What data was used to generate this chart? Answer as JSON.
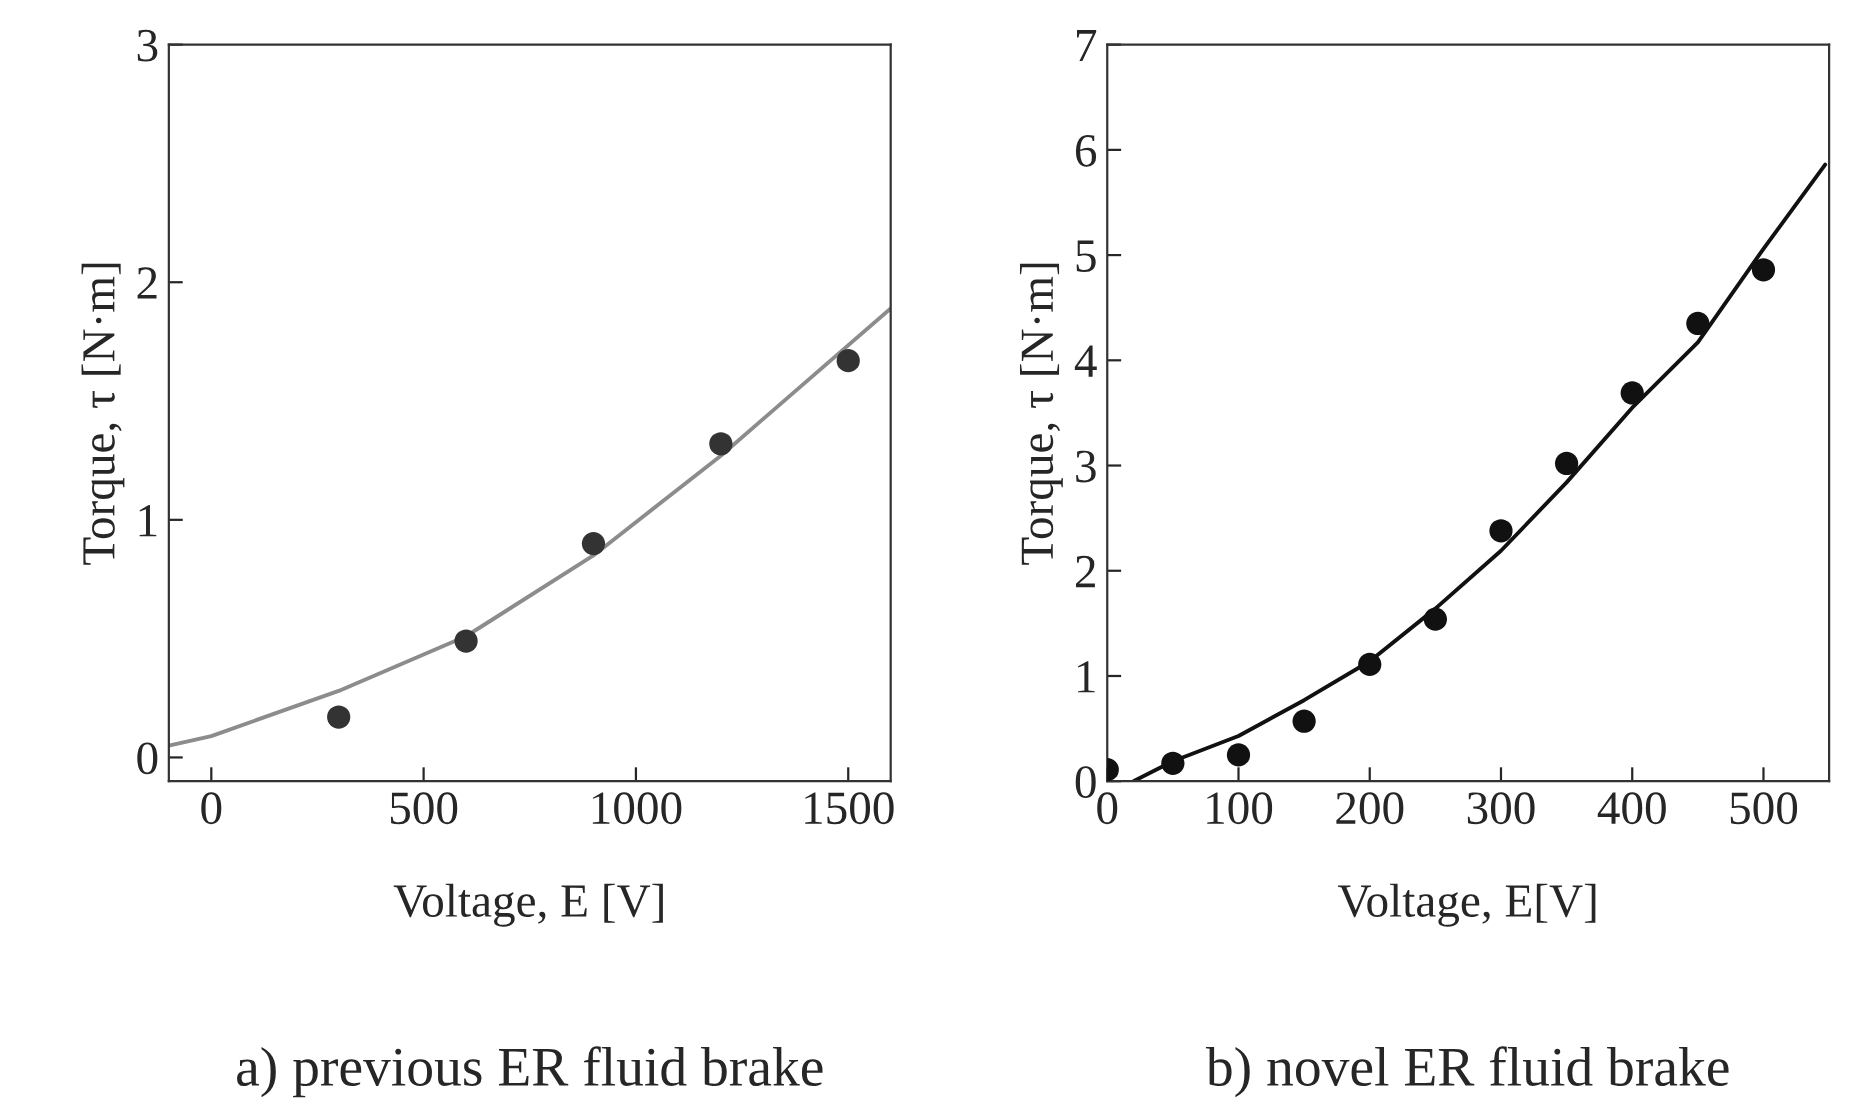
{
  "chart_data": [
    {
      "type": "scatter",
      "xlabel": "Voltage, E [V]",
      "ylabel": "Torque, τ [N·m]",
      "annotations": [
        "a) previous ER fluid brake"
      ],
      "xlim": [
        -100,
        1600
      ],
      "ylim": [
        -0.1,
        3
      ],
      "xticks": [
        0,
        500,
        1000,
        1500
      ],
      "yticks": [
        0,
        1,
        2,
        3
      ],
      "grid": false,
      "series": [
        {
          "marker": "circle",
          "color": "#333333",
          "x": [
            300,
            600,
            900,
            1200,
            1500
          ],
          "values": [
            0.17,
            0.49,
            0.9,
            1.32,
            1.67
          ]
        },
        {
          "type": "line",
          "color": "#8c8c8c",
          "line_style": "solid",
          "marker": "none",
          "x": [
            -100,
            0,
            300,
            600,
            900,
            1200,
            1600
          ],
          "values": [
            0.05,
            0.09,
            0.28,
            0.51,
            0.85,
            1.27,
            1.89
          ]
        }
      ]
    },
    {
      "type": "scatter",
      "xlabel": "Voltage, E[V]",
      "ylabel": "Torque, τ [N·m]",
      "annotations": [
        "b) novel ER fluid brake"
      ],
      "xlim": [
        0,
        550
      ],
      "ylim": [
        0,
        7
      ],
      "xticks": [
        0,
        100,
        200,
        300,
        400,
        500
      ],
      "yticks": [
        0,
        1,
        2,
        3,
        4,
        5,
        6,
        7
      ],
      "grid": false,
      "series": [
        {
          "marker": "circle",
          "color": "#111111",
          "x": [
            0,
            50,
            100,
            150,
            200,
            250,
            300,
            350,
            400,
            450,
            500
          ],
          "values": [
            0.11,
            0.17,
            0.25,
            0.57,
            1.11,
            1.54,
            2.38,
            3.02,
            3.69,
            4.35,
            4.86
          ]
        },
        {
          "type": "line",
          "color": "#111111",
          "line_style": "solid",
          "marker": "none",
          "x": [
            20,
            50,
            100,
            150,
            200,
            250,
            300,
            350,
            400,
            450,
            500,
            547
          ],
          "values": [
            0,
            0.19,
            0.43,
            0.77,
            1.14,
            1.64,
            2.19,
            2.84,
            3.55,
            4.17,
            5.06,
            5.86
          ]
        }
      ]
    }
  ]
}
